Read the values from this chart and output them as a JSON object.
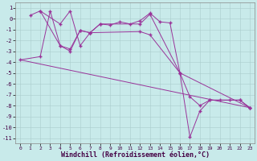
{
  "background_color": "#c8eaea",
  "line_color": "#993399",
  "grid_color": "#aacccc",
  "xlabel": "Windchill (Refroidissement éolien,°C)",
  "xlim": [
    -0.5,
    23.5
  ],
  "ylim": [
    -11.5,
    1.5
  ],
  "xticks": [
    0,
    1,
    2,
    3,
    4,
    5,
    6,
    7,
    8,
    9,
    10,
    11,
    12,
    13,
    14,
    15,
    16,
    17,
    18,
    19,
    20,
    21,
    22,
    23
  ],
  "yticks": [
    1,
    0,
    -1,
    -2,
    -3,
    -4,
    -5,
    -6,
    -7,
    -8,
    -9,
    -10,
    -11
  ],
  "series1": [
    [
      1,
      0.3
    ],
    [
      2,
      0.7
    ],
    [
      4,
      -0.5
    ],
    [
      5,
      0.7
    ],
    [
      6,
      -2.5
    ],
    [
      7,
      -1.3
    ],
    [
      8,
      -0.5
    ],
    [
      9,
      -0.6
    ],
    [
      10,
      -0.3
    ],
    [
      11,
      -0.5
    ],
    [
      12,
      -0.2
    ],
    [
      13,
      0.5
    ],
    [
      14,
      -0.3
    ],
    [
      15,
      -0.4
    ],
    [
      16,
      -5.0
    ],
    [
      17,
      -7.2
    ],
    [
      18,
      -8.0
    ],
    [
      19,
      -7.5
    ],
    [
      20,
      -7.5
    ],
    [
      21,
      -7.5
    ],
    [
      22,
      -7.5
    ],
    [
      23,
      -8.2
    ]
  ],
  "series2": [
    [
      2,
      0.7
    ],
    [
      4,
      -2.5
    ],
    [
      5,
      -2.8
    ],
    [
      6,
      -1.1
    ],
    [
      7,
      -1.3
    ],
    [
      8,
      -0.5
    ],
    [
      12,
      -0.5
    ],
    [
      13,
      0.4
    ],
    [
      16,
      -5.0
    ],
    [
      17,
      -10.9
    ],
    [
      18,
      -8.5
    ],
    [
      19,
      -7.5
    ],
    [
      22,
      -7.5
    ],
    [
      23,
      -8.2
    ]
  ],
  "series3": [
    [
      0,
      -3.8
    ],
    [
      2,
      -3.5
    ],
    [
      3,
      0.7
    ],
    [
      4,
      -2.5
    ],
    [
      5,
      -3.0
    ],
    [
      6,
      -1.1
    ],
    [
      7,
      -1.3
    ],
    [
      12,
      -1.2
    ],
    [
      13,
      -1.5
    ],
    [
      16,
      -5.0
    ],
    [
      23,
      -8.2
    ]
  ],
  "series4": [
    [
      0,
      -3.8
    ],
    [
      23,
      -8.2
    ]
  ]
}
